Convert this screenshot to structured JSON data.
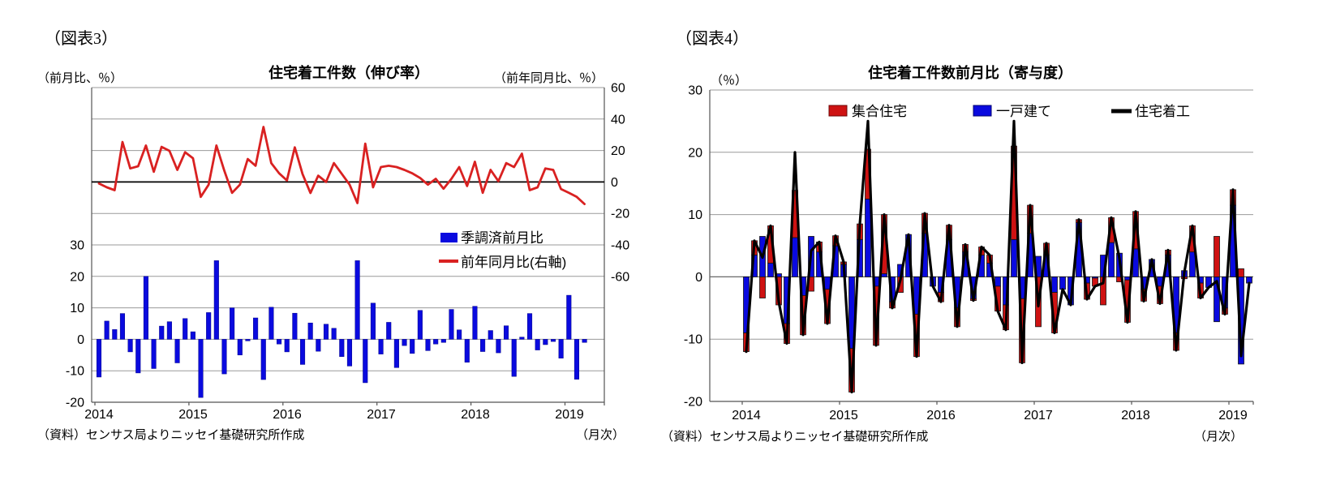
{
  "chart_data": [
    {
      "type": "bar+line",
      "fig_label": "（図表3）",
      "title": "住宅着工件数（伸び率）",
      "left_axis_title": "（前月比、％）",
      "right_axis_title": "（前年同月比、％）",
      "x_unit": "（月次）",
      "footer": "（資料）センサス局よりニッセイ基礎研究所作成",
      "left_axis": {
        "ticks_labeled": [
          "30",
          "20",
          "10",
          "0",
          "-10",
          "-20"
        ],
        "major_unit": 10,
        "plot_range": [
          -20,
          80
        ]
      },
      "right_axis": {
        "ticks_labeled": [
          "60",
          "40",
          "20",
          "0",
          "-20",
          "-40",
          "-60"
        ],
        "major_unit": 20,
        "plot_range": [
          -140,
          60
        ]
      },
      "x_labels": [
        "2014",
        "2015",
        "2016",
        "2017",
        "2018",
        "2019"
      ],
      "grid": true,
      "legend_position": "inside-middle-right",
      "legend": [
        {
          "label": "季調済前月比",
          "swatch": "bar",
          "color": "#0a0adf"
        },
        {
          "label": "前年同月比(右軸)",
          "swatch": "line",
          "color": "#d92121"
        }
      ],
      "months": [
        "2014-01",
        "2014-02",
        "2014-03",
        "2014-04",
        "2014-05",
        "2014-06",
        "2014-07",
        "2014-08",
        "2014-09",
        "2014-10",
        "2014-11",
        "2014-12",
        "2015-01",
        "2015-02",
        "2015-03",
        "2015-04",
        "2015-05",
        "2015-06",
        "2015-07",
        "2015-08",
        "2015-09",
        "2015-10",
        "2015-11",
        "2015-12",
        "2016-01",
        "2016-02",
        "2016-03",
        "2016-04",
        "2016-05",
        "2016-06",
        "2016-07",
        "2016-08",
        "2016-09",
        "2016-10",
        "2016-11",
        "2016-12",
        "2017-01",
        "2017-02",
        "2017-03",
        "2017-04",
        "2017-05",
        "2017-06",
        "2017-07",
        "2017-08",
        "2017-09",
        "2017-10",
        "2017-11",
        "2017-12",
        "2018-01",
        "2018-02",
        "2018-03",
        "2018-04",
        "2018-05",
        "2018-06",
        "2018-07",
        "2018-08",
        "2018-09",
        "2018-10",
        "2018-11",
        "2018-12",
        "2019-01",
        "2019-02",
        "2019-03"
      ],
      "series": [
        {
          "name": "季調済前月比",
          "type": "bar",
          "axis": "left",
          "unit": "%",
          "color": "#0a0adf",
          "values": [
            -12,
            5.8,
            3.1,
            8.2,
            -4,
            -10.7,
            20,
            -9.3,
            4.2,
            5.6,
            -7.5,
            6.6,
            2.4,
            -18.5,
            8.5,
            25,
            -11,
            10,
            -5,
            -0.5,
            6.8,
            -12.8,
            10.2,
            -1.5,
            -4,
            8.3,
            -8,
            5.2,
            -3.8,
            4.8,
            3.5,
            -5.5,
            -8.5,
            25,
            -13.8,
            11.5,
            -4.7,
            5.4,
            -9,
            -2,
            -4.5,
            9.2,
            -3.6,
            -1.5,
            -1,
            9.5,
            3,
            -7.3,
            10.5,
            -3.9,
            2.8,
            -4.3,
            4.3,
            -11.8,
            0.7,
            8.2,
            -3.4,
            -1.7,
            -0.7,
            -6,
            14,
            -12.7,
            -1
          ]
        },
        {
          "name": "前年同月比",
          "type": "line",
          "axis": "right",
          "unit": "%",
          "color": "#d92121",
          "values": [
            -1,
            -3.4,
            -5.2,
            25.4,
            8.6,
            10,
            23.2,
            6.5,
            22.3,
            19.8,
            7.7,
            18.9,
            15.1,
            -9.5,
            -1.7,
            23.2,
            7.2,
            -6.9,
            -1.7,
            14.6,
            10.3,
            35,
            12,
            5.5,
            1,
            22,
            5,
            -7,
            4,
            0,
            12,
            5.2,
            -1.7,
            -13.4,
            24.4,
            -3.4,
            9.5,
            10.3,
            9.5,
            7.7,
            5.5,
            2.6,
            -1.7,
            2,
            -4.3,
            2,
            9.5,
            -2.6,
            12.9,
            -6.9,
            7.7,
            0.5,
            12,
            9.5,
            18,
            -5.2,
            -3.4,
            8.6,
            7.7,
            -4.5,
            -6.9,
            -9.5,
            -14
          ]
        }
      ]
    },
    {
      "type": "stacked-bar+line",
      "fig_label": "（図表4）",
      "title": "住宅着工件数前月比（寄与度）",
      "y_axis_title": "（％）",
      "x_unit": "（月次）",
      "footer": "（資料）センサス局よりニッセイ基礎研究所作成",
      "y_axis": {
        "ticks_labeled": [
          "30",
          "20",
          "10",
          "0",
          "-10",
          "-20"
        ],
        "major_unit": 10,
        "plot_range": [
          -20,
          30
        ]
      },
      "x_labels": [
        "2014",
        "2015",
        "2016",
        "2017",
        "2018",
        "2019"
      ],
      "grid": true,
      "legend_position": "inside-top",
      "legend": [
        {
          "label": "集合住宅",
          "swatch": "bar",
          "color": "#ce1212"
        },
        {
          "label": "一戸建て",
          "swatch": "bar",
          "color": "#0a0adf"
        },
        {
          "label": "住宅着工",
          "swatch": "line",
          "color": "#000000"
        }
      ],
      "months": [
        "2014-01",
        "2014-02",
        "2014-03",
        "2014-04",
        "2014-05",
        "2014-06",
        "2014-07",
        "2014-08",
        "2014-09",
        "2014-10",
        "2014-11",
        "2014-12",
        "2015-01",
        "2015-02",
        "2015-03",
        "2015-04",
        "2015-05",
        "2015-06",
        "2015-07",
        "2015-08",
        "2015-09",
        "2015-10",
        "2015-11",
        "2015-12",
        "2016-01",
        "2016-02",
        "2016-03",
        "2016-04",
        "2016-05",
        "2016-06",
        "2016-07",
        "2016-08",
        "2016-09",
        "2016-10",
        "2016-11",
        "2016-12",
        "2017-01",
        "2017-02",
        "2017-03",
        "2017-04",
        "2017-05",
        "2017-06",
        "2017-07",
        "2017-08",
        "2017-09",
        "2017-10",
        "2017-11",
        "2017-12",
        "2018-01",
        "2018-02",
        "2018-03",
        "2018-04",
        "2018-05",
        "2018-06",
        "2018-07",
        "2018-08",
        "2018-09",
        "2018-10",
        "2018-11",
        "2018-12",
        "2019-01",
        "2019-02",
        "2019-03"
      ],
      "series": [
        {
          "name": "一戸建て",
          "type": "bar",
          "stack_order": 1,
          "unit": "%pt",
          "color": "#0a0adf",
          "values": [
            -9,
            3.5,
            6.5,
            2.2,
            0.5,
            -7.5,
            6.3,
            -3,
            6.5,
            4,
            -2,
            5,
            2,
            -11.5,
            6,
            12.5,
            -1.5,
            0.5,
            -4,
            2,
            6.8,
            -6,
            7,
            -1.5,
            -2.5,
            6,
            -5,
            4,
            -3.5,
            3.5,
            2.2,
            -1.5,
            -4.5,
            6,
            -3.5,
            7,
            3.3,
            3.5,
            -2.5,
            -2,
            -4.5,
            8.7,
            -1,
            -0.2,
            3.5,
            5.5,
            3.8,
            -0.5,
            4.5,
            -2,
            2.8,
            -1.5,
            3.5,
            -9,
            1,
            4,
            -1,
            -1.7,
            -7.2,
            -5,
            11.5,
            -14,
            -1
          ]
        },
        {
          "name": "集合住宅",
          "type": "bar",
          "stack_order": 2,
          "unit": "%pt",
          "color": "#ce1212",
          "values": [
            -3,
            2.3,
            -3.4,
            6,
            -4.5,
            -3.2,
            7.6,
            -6.3,
            -2.3,
            1.6,
            -5.5,
            1.6,
            0.4,
            -7,
            2.5,
            8,
            -9.5,
            9.5,
            -1,
            -2.5,
            0,
            -6.8,
            3.2,
            0,
            -1.5,
            2.3,
            -3,
            1.2,
            -0.3,
            1.3,
            1.3,
            -4,
            -4,
            15,
            -10.3,
            4.5,
            -8,
            1.9,
            -6.5,
            0,
            0,
            0.5,
            -2.6,
            -1.3,
            -4.5,
            4,
            -0.8,
            -6.8,
            6,
            -1.9,
            0,
            -2.8,
            0.8,
            -2.8,
            -0.3,
            4.2,
            -2.4,
            0,
            6.5,
            -1,
            2.5,
            1.3,
            0
          ]
        },
        {
          "name": "住宅着工",
          "type": "line",
          "unit": "%",
          "color": "#000000",
          "values": [
            -12,
            5.8,
            3.1,
            8.2,
            -4,
            -10.7,
            20,
            -9.3,
            4.2,
            5.6,
            -7.5,
            6.6,
            2.4,
            -18.5,
            8.5,
            25,
            -11,
            10,
            -5,
            -0.5,
            6.8,
            -12.8,
            10.2,
            -1.5,
            -4,
            8.3,
            -8,
            5.2,
            -3.8,
            4.8,
            3.5,
            -5.5,
            -8.5,
            25,
            -13.8,
            11.5,
            -4.7,
            5.4,
            -9,
            -2,
            -4.5,
            9.2,
            -3.6,
            -1.5,
            -1,
            9.5,
            3,
            -7.3,
            10.5,
            -3.9,
            2.8,
            -4.3,
            4.3,
            -11.8,
            0.7,
            8.2,
            -3.4,
            -1.7,
            -0.7,
            -6,
            14,
            -12.7,
            -1
          ]
        }
      ]
    }
  ],
  "colors": {
    "bar_blue": "#0a0adf",
    "bar_red": "#ce1212",
    "line_red": "#d92121",
    "line_black": "#000000",
    "grid": "#9a9a9a",
    "axis": "#555555"
  }
}
